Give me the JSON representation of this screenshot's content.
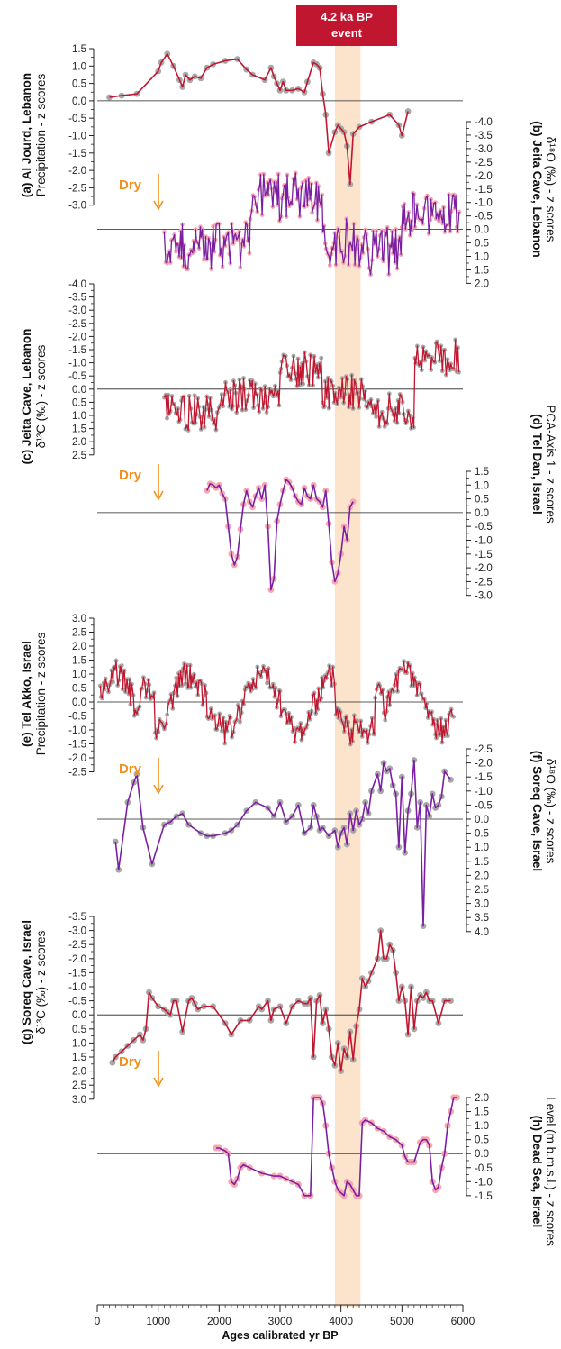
{
  "event": {
    "line1": "4.2 ka BP",
    "line2": "event",
    "band": [
      3900,
      4320
    ],
    "band_color": "#fce4cc",
    "label_color": "#c0162f"
  },
  "dry_label": "Dry",
  "colors": {
    "red": "#c0162f",
    "purple": "#7b1fa2",
    "grey_dot": "#a8a8a8",
    "pink_dot": "#f6a7b3",
    "orange": "#f0901e"
  },
  "chart_data": {
    "type": "line",
    "xaxis": {
      "label": "Ages calibrated yr BP",
      "range": [
        0,
        6000
      ],
      "ticks": [
        0,
        1000,
        2000,
        3000,
        4000,
        5000,
        6000
      ]
    },
    "panels": [
      {
        "id": "a",
        "side": "left",
        "title": "(a) Al Jourd, Lebanon",
        "subtitle": "Precipitation - z scores",
        "ticks": [
          "1.5",
          "1.0",
          "0.5",
          "0.0",
          "-0.5",
          "-1.0",
          "-1.5",
          "-2.0",
          "-2.5",
          "-3.0"
        ],
        "series": {
          "name": "",
          "color": "red",
          "dot": "grey",
          "x": [
            200,
            400,
            650,
            1000,
            1050,
            1150,
            1250,
            1350,
            1400,
            1450,
            1520,
            1600,
            1700,
            1800,
            1900,
            2100,
            2300,
            2450,
            2550,
            2750,
            2850,
            2900,
            2950,
            3000,
            3050,
            3100,
            3200,
            3300,
            3400,
            3450,
            3550,
            3600,
            3650,
            3700,
            3750,
            3800,
            3900,
            3950,
            4000,
            4050,
            4100,
            4150,
            4200,
            4300,
            4500,
            4800,
            4950,
            5000,
            5100
          ],
          "y": [
            0.1,
            0.15,
            0.2,
            0.85,
            1.1,
            1.35,
            1.0,
            0.6,
            0.4,
            0.75,
            0.6,
            0.7,
            0.65,
            0.95,
            1.05,
            1.15,
            1.2,
            0.9,
            0.75,
            0.6,
            0.95,
            0.7,
            0.5,
            0.3,
            0.55,
            0.3,
            0.3,
            0.35,
            0.25,
            0.55,
            1.1,
            1.05,
            0.95,
            0.2,
            -0.4,
            -1.5,
            -0.9,
            -0.7,
            -0.8,
            -0.9,
            -1.3,
            -2.4,
            -0.95,
            -0.75,
            -0.6,
            -0.4,
            -0.7,
            -1.0,
            -0.3
          ]
        }
      },
      {
        "id": "b",
        "side": "right",
        "title": "(b) Jeita Cave, Lebanon",
        "subtitle": "δ¹⁸O (‰) - z scores",
        "ticks": [
          "-4.0",
          "-3.5",
          "-3.0",
          "-2.5",
          "-2.0",
          "-1.5",
          "-1.0",
          "-0.5",
          "0.0",
          "0.5",
          "1.0",
          "1.5",
          "2.0"
        ],
        "series": {
          "name": "",
          "color": "purple",
          "dot": "pink",
          "range": [
            1100,
            5950
          ]
        }
      },
      {
        "id": "c",
        "side": "left",
        "title": "(c) Jeita Cave, Lebanon",
        "subtitle": "δ¹³C (‰) - z scores",
        "ticks": [
          "-4.0",
          "-3.5",
          "-3.0",
          "-2.5",
          "-2.0",
          "-1.5",
          "-1.0",
          "-0.5",
          "0.0",
          "0.5",
          "1.0",
          "1.5",
          "2.0",
          "2.5"
        ],
        "series": {
          "name": "",
          "color": "red",
          "dot": "grey",
          "range": [
            1100,
            5950
          ]
        }
      },
      {
        "id": "d",
        "side": "right",
        "title": "(d) Tel Dan, Israel",
        "subtitle": "PCA-Axis 1 - z scores",
        "ticks": [
          "1.5",
          "1.0",
          "0.5",
          "0.0",
          "-0.5",
          "-1.0",
          "-1.5",
          "-2.0",
          "-2.5",
          "-3.0"
        ],
        "series": {
          "name": "",
          "color": "purple",
          "dot": "pink",
          "x": [
            1800,
            1850,
            1900,
            1950,
            2000,
            2050,
            2100,
            2150,
            2200,
            2250,
            2300,
            2350,
            2400,
            2450,
            2500,
            2550,
            2600,
            2650,
            2700,
            2750,
            2800,
            2850,
            2900,
            2950,
            3000,
            3050,
            3100,
            3150,
            3200,
            3250,
            3300,
            3350,
            3400,
            3450,
            3500,
            3550,
            3600,
            3650,
            3700,
            3750,
            3800,
            3850,
            3900,
            3950,
            4000,
            4050,
            4100,
            4150,
            4200
          ],
          "y": [
            0.8,
            1.05,
            1.0,
            0.9,
            1.0,
            0.7,
            0.5,
            -0.5,
            -1.5,
            -1.9,
            -1.6,
            -0.6,
            0.3,
            0.8,
            0.4,
            0.2,
            0.6,
            0.9,
            0.5,
            1.0,
            -0.5,
            -2.8,
            -2.4,
            -0.3,
            0.3,
            0.8,
            1.2,
            1.1,
            0.9,
            0.6,
            0.4,
            0.3,
            0.9,
            0.6,
            0.5,
            1.0,
            0.5,
            0.4,
            0.2,
            0.8,
            -0.4,
            -1.8,
            -2.5,
            -2.2,
            -1.5,
            -0.5,
            -1.0,
            0.2,
            0.4
          ]
        }
      },
      {
        "id": "e",
        "side": "left",
        "title": "(e) Tel Akko, Israel",
        "subtitle": "Precipitation - z scores",
        "ticks": [
          "3.0",
          "2.5",
          "2.0",
          "1.5",
          "1.0",
          "0.5",
          "0.0",
          "-0.5",
          "-1.0",
          "-1.5",
          "-2.0",
          "-2.5"
        ],
        "series": {
          "name": "",
          "color": "red",
          "dot": "grey",
          "range": [
            50,
            5850
          ]
        }
      },
      {
        "id": "f",
        "side": "right",
        "title": "(f) Soreq Cave, Israel",
        "subtitle": "δ¹⁸O (‰) - z scores",
        "ticks": [
          "-2.5",
          "-2.0",
          "-1.5",
          "-1.0",
          "-0.5",
          "0.0",
          "0.5",
          "1.0",
          "1.5",
          "2.0",
          "2.5",
          "3.0",
          "3.5",
          "4.0"
        ],
        "series": {
          "name": "",
          "color": "purple",
          "dot": "grey",
          "x": [
            300,
            350,
            500,
            600,
            650,
            750,
            900,
            1100,
            1200,
            1300,
            1400,
            1500,
            1700,
            1800,
            1900,
            2100,
            2200,
            2300,
            2450,
            2600,
            2800,
            2900,
            3000,
            3100,
            3200,
            3300,
            3400,
            3500,
            3550,
            3600,
            3650,
            3700,
            3800,
            3900,
            3950,
            4000,
            4050,
            4100,
            4150,
            4200,
            4250,
            4300,
            4350,
            4400,
            4450,
            4500,
            4600,
            4650,
            4700,
            4750,
            4800,
            4850,
            4900,
            4950,
            5000,
            5050,
            5100,
            5150,
            5200,
            5250,
            5300,
            5350,
            5400,
            5450,
            5500,
            5550,
            5600,
            5650,
            5700,
            5800
          ],
          "y": [
            0.8,
            1.8,
            -0.6,
            -1.3,
            -1.6,
            0.3,
            1.6,
            0.2,
            0.1,
            -0.1,
            -0.2,
            0.2,
            0.5,
            0.6,
            0.6,
            0.5,
            0.4,
            0.2,
            -0.3,
            -0.6,
            -0.4,
            -0.1,
            -0.6,
            0.1,
            -0.1,
            -0.5,
            0.5,
            0.3,
            -0.5,
            -0.1,
            0.4,
            0.3,
            0.6,
            0.4,
            1.0,
            0.5,
            0.3,
            0.9,
            -0.2,
            0.4,
            -0.3,
            0.2,
            0.0,
            -0.6,
            -0.2,
            -1.0,
            -1.6,
            -1.0,
            -2.0,
            -1.7,
            -1.8,
            -1.2,
            -0.9,
            1.0,
            -1.5,
            1.2,
            -0.3,
            -0.9,
            -2.1,
            0.3,
            -0.6,
            3.8,
            -0.5,
            -0.1,
            -0.9,
            -0.4,
            -0.5,
            -0.8,
            -1.7,
            -1.4
          ]
        }
      },
      {
        "id": "g",
        "side": "left",
        "title": "(g) Soreq Cave, Israel",
        "subtitle": "δ¹³C (‰) - z scores",
        "ticks": [
          "-3.5",
          "-3.0",
          "-2.5",
          "-2.0",
          "-1.5",
          "-1.0",
          "-0.5",
          "0.0",
          "0.5",
          "1.0",
          "1.5",
          "2.0",
          "2.5",
          "3.0"
        ],
        "series": {
          "name": "",
          "color": "red",
          "dot": "grey",
          "x": [
            250,
            300,
            400,
            500,
            600,
            700,
            750,
            800,
            850,
            900,
            1000,
            1100,
            1150,
            1200,
            1250,
            1300,
            1400,
            1500,
            1550,
            1600,
            1650,
            1750,
            1900,
            2100,
            2200,
            2350,
            2500,
            2650,
            2700,
            2800,
            2850,
            2900,
            3000,
            3100,
            3200,
            3300,
            3400,
            3450,
            3500,
            3550,
            3600,
            3650,
            3700,
            3750,
            3800,
            3850,
            3900,
            3950,
            4000,
            4050,
            4100,
            4150,
            4200,
            4250,
            4300,
            4350,
            4400,
            4450,
            4500,
            4600,
            4650,
            4700,
            4750,
            4800,
            4850,
            4900,
            4950,
            5000,
            5050,
            5100,
            5150,
            5200,
            5250,
            5300,
            5350,
            5400,
            5450,
            5500,
            5600,
            5700,
            5800
          ],
          "y": [
            1.7,
            1.5,
            1.3,
            1.1,
            0.9,
            0.7,
            0.9,
            0.5,
            -0.8,
            -0.6,
            -0.3,
            -0.2,
            -0.1,
            0.0,
            -0.5,
            -0.5,
            0.6,
            -0.5,
            -0.6,
            -0.4,
            -0.2,
            -0.3,
            -0.3,
            0.3,
            0.7,
            0.2,
            0.2,
            -0.3,
            -0.2,
            -0.5,
            0.2,
            -0.2,
            -0.3,
            0.3,
            -0.3,
            -0.5,
            -0.4,
            -0.4,
            -0.6,
            1.5,
            -0.5,
            -0.7,
            0.3,
            -0.2,
            0.5,
            1.5,
            1.8,
            1.0,
            2.0,
            1.2,
            1.5,
            0.6,
            1.6,
            0.4,
            -0.2,
            -1.3,
            -1.0,
            -1.2,
            -1.5,
            -2.0,
            -3.0,
            -2.0,
            -2.0,
            -2.5,
            -2.3,
            -1.5,
            -0.5,
            -1.0,
            -0.5,
            0.7,
            -1.0,
            0.5,
            -0.5,
            -0.7,
            -0.6,
            -0.8,
            -0.5,
            -0.5,
            0.3,
            -0.5,
            -0.5
          ]
        }
      },
      {
        "id": "h",
        "side": "right",
        "title": "(h) Dead Sea, Israel",
        "subtitle": "Level (m b.m.s.l.) - z scores",
        "ticks": [
          "2.0",
          "1.5",
          "1.0",
          "0.5",
          "0.0",
          "-0.5",
          "-1.0",
          "-1.5"
        ],
        "series": {
          "name": "",
          "color": "purple",
          "dot": "pink",
          "x": [
            1950,
            2000,
            2100,
            2150,
            2200,
            2250,
            2300,
            2350,
            2400,
            2500,
            2700,
            2900,
            3000,
            3100,
            3200,
            3300,
            3400,
            3500,
            3550,
            3600,
            3650,
            3700,
            3750,
            3800,
            3850,
            3900,
            3950,
            4000,
            4050,
            4100,
            4150,
            4200,
            4250,
            4300,
            4350,
            4400,
            4500,
            4600,
            4700,
            4800,
            4900,
            5000,
            5050,
            5100,
            5150,
            5200,
            5300,
            5350,
            5400,
            5450,
            5500,
            5550,
            5600,
            5650,
            5700,
            5750,
            5800,
            5850,
            5900
          ],
          "y": [
            0.2,
            0.2,
            0.1,
            0.0,
            -1.0,
            -1.1,
            -0.9,
            -0.5,
            -0.4,
            -0.5,
            -0.7,
            -0.8,
            -0.8,
            -0.9,
            -1.0,
            -1.1,
            -1.5,
            -1.5,
            2.0,
            2.0,
            2.0,
            1.8,
            1.0,
            0.0,
            -0.5,
            -1.0,
            -1.3,
            -1.4,
            -1.5,
            -1.0,
            -1.1,
            -1.3,
            -1.5,
            -1.5,
            1.1,
            1.2,
            1.1,
            0.9,
            0.8,
            0.6,
            0.5,
            0.3,
            -0.1,
            -0.3,
            -0.3,
            -0.3,
            0.4,
            0.5,
            0.5,
            0.3,
            -1.0,
            -1.3,
            -1.2,
            -0.5,
            0.0,
            1.0,
            1.5,
            2.0,
            2.0
          ]
        }
      }
    ]
  }
}
